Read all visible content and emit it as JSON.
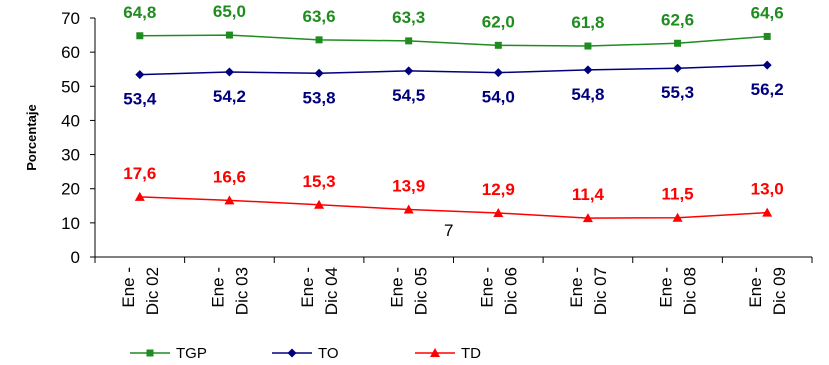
{
  "chart_data": {
    "type": "line",
    "ylabel": "Porcentaje",
    "ylim": [
      0,
      70
    ],
    "yticks": [
      "0",
      "10",
      "20",
      "30",
      "40",
      "50",
      "60",
      "70"
    ],
    "categories": [
      [
        "Ene -",
        "Dic 02"
      ],
      [
        "Ene -",
        "Dic 03"
      ],
      [
        "Ene -",
        "Dic 04"
      ],
      [
        "Ene -",
        "Dic 05"
      ],
      [
        "Ene -",
        "Dic 06"
      ],
      [
        "Ene -",
        "Dic 07"
      ],
      [
        "Ene -",
        "Dic 08"
      ],
      [
        "Ene -",
        "Dic 09"
      ]
    ],
    "series": [
      {
        "name": "TGP",
        "color": "#1f8c1f",
        "marker": "square",
        "label_position": "above",
        "values": [
          64.8,
          65.0,
          63.6,
          63.3,
          62.0,
          61.8,
          62.6,
          64.6
        ],
        "labels": [
          "64,8",
          "65,0",
          "63,6",
          "63,3",
          "62,0",
          "61,8",
          "62,6",
          "64,6"
        ]
      },
      {
        "name": "TO",
        "color": "#00007f",
        "marker": "diamond",
        "label_position": "below",
        "values": [
          53.4,
          54.2,
          53.8,
          54.5,
          54.0,
          54.8,
          55.3,
          56.2
        ],
        "labels": [
          "53,4",
          "54,2",
          "53,8",
          "54,5",
          "54,0",
          "54,8",
          "55,3",
          "56,2"
        ]
      },
      {
        "name": "TD",
        "color": "#ff0000",
        "marker": "triangle",
        "label_position": "above",
        "values": [
          17.6,
          16.6,
          15.3,
          13.9,
          12.9,
          11.4,
          11.5,
          13.0
        ],
        "labels": [
          "17,6",
          "16,6",
          "15,3",
          "13,9",
          "12,9",
          "11,4",
          "11,5",
          "13,0"
        ]
      }
    ],
    "annotations": [
      {
        "text": "7",
        "x": "Dic 05",
        "y": 7
      }
    ],
    "grid": false,
    "legend": "bottom"
  }
}
